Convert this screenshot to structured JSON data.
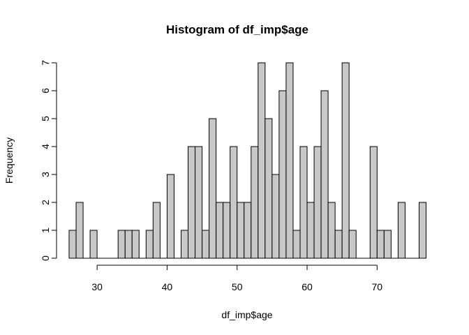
{
  "chart_data": {
    "type": "bar",
    "title": "Histogram of df_imp$age",
    "xlabel": "df_imp$age",
    "ylabel": "Frequency",
    "bin_width": 1,
    "bin_start": 26,
    "values": [
      1,
      2,
      0,
      1,
      0,
      0,
      0,
      1,
      1,
      1,
      0,
      1,
      2,
      0,
      3,
      0,
      1,
      4,
      4,
      1,
      5,
      2,
      2,
      4,
      2,
      2,
      4,
      7,
      5,
      3,
      6,
      7,
      1,
      4,
      2,
      4,
      6,
      2,
      1,
      7,
      1,
      0,
      0,
      4,
      1,
      1,
      0,
      2,
      0,
      0,
      2
    ],
    "xlim": [
      26,
      77
    ],
    "ylim": [
      0,
      7
    ],
    "xticks": [
      30,
      40,
      50,
      60,
      70
    ],
    "yticks": [
      0,
      1,
      2,
      3,
      4,
      5,
      6,
      7
    ],
    "grid": false
  }
}
